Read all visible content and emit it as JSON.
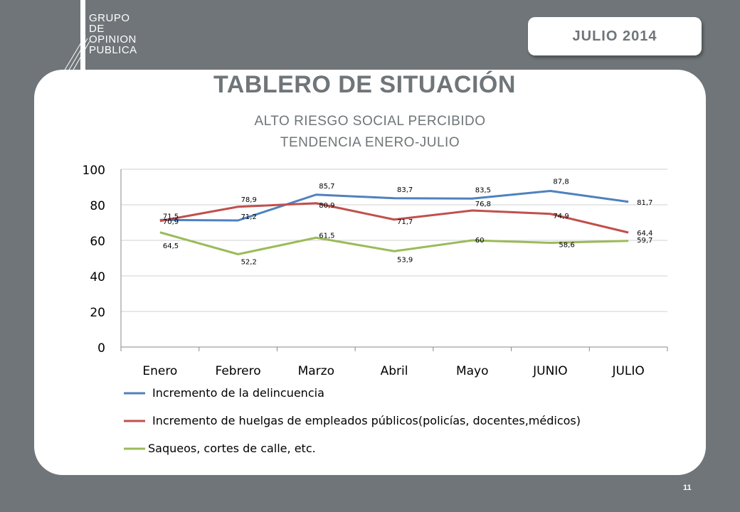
{
  "logo": {
    "line1": "GRUPO",
    "line2": "DE",
    "line3": "OPINION",
    "line4": "PUBLICA"
  },
  "date": "JULIO  2014",
  "title": "TABLERO DE SITUACIÓN",
  "subtitle1": "ALTO RIESGO SOCIAL PERCIBIDO",
  "subtitle2": "TENDENCIA ENERO-JULIO",
  "page_number": "11",
  "colors": {
    "background": "#6f7578",
    "series1": "#4f81bd",
    "series2": "#c0504d",
    "series3": "#9bbb59"
  },
  "chart_data": {
    "type": "line",
    "categories": [
      "Enero",
      "Febrero",
      "Marzo",
      "Abril",
      "Mayo",
      "JUNIO",
      "JULIO"
    ],
    "ylim": [
      0,
      100
    ],
    "yticks": [
      0,
      20,
      40,
      60,
      80,
      100
    ],
    "grid": true,
    "legend": "bottom",
    "series": [
      {
        "name": "Incremento de la delincuencia",
        "color": "#4f81bd",
        "values": [
          71.5,
          71.2,
          85.7,
          83.7,
          83.5,
          87.8,
          81.7
        ],
        "labels": [
          "71,5",
          "71,2",
          "85,7",
          "83,7",
          "83,5",
          "87,8",
          "81,7"
        ]
      },
      {
        "name": "Incremento de huelgas de empleados públicos(policías, docentes,médicos)",
        "color": "#c0504d",
        "values": [
          70.9,
          78.9,
          80.9,
          71.7,
          76.8,
          74.9,
          64.4
        ],
        "labels": [
          "70,9",
          "78,9",
          "80,9",
          "71,7",
          "76,8",
          "74,9",
          "64,4"
        ]
      },
      {
        "name": "Saqueos, cortes de calle, etc.",
        "color": "#9bbb59",
        "values": [
          64.5,
          52.2,
          61.5,
          53.9,
          60,
          58.6,
          59.7
        ],
        "labels": [
          "64,5",
          "52,2",
          "61,5",
          "53,9",
          "60",
          "58,6",
          "59,7"
        ]
      }
    ]
  }
}
